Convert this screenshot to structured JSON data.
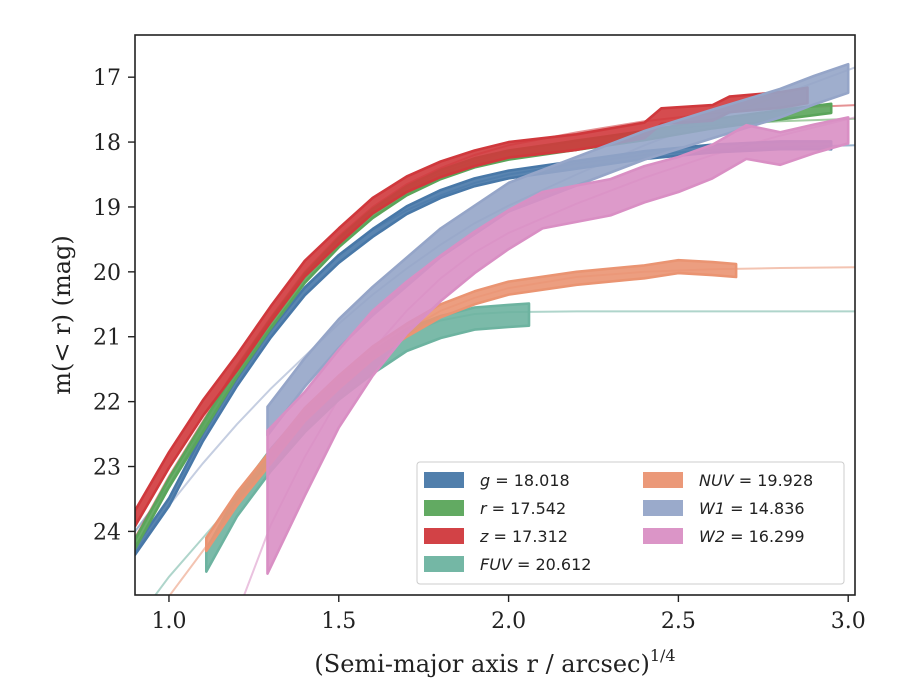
{
  "chart_data": {
    "type": "line",
    "xlabel": "(Semi-major axis r / arcsec)",
    "xlabel_sup": "1/4",
    "ylabel": "m(< r) (mag)",
    "xlim": [
      0.9,
      3.02
    ],
    "ylim": [
      24.98,
      16.35
    ],
    "y_inverted": true,
    "grid": false,
    "legend_position": "lower-right",
    "xticks": [
      1.0,
      1.5,
      2.0,
      2.5,
      3.0
    ],
    "xtick_labels": [
      "1.0",
      "1.5",
      "2.0",
      "2.5",
      "3.0"
    ],
    "yticks": [
      17,
      18,
      19,
      20,
      21,
      22,
      23,
      24
    ],
    "ytick_labels": [
      "17",
      "18",
      "19",
      "20",
      "21",
      "22",
      "23",
      "24"
    ],
    "series": [
      {
        "name": "g = 18.018",
        "var": "g",
        "value": "18.018",
        "color": "#4878a8",
        "x": [
          0.9,
          1.0,
          1.1,
          1.2,
          1.3,
          1.4,
          1.5,
          1.6,
          1.7,
          1.8,
          1.9,
          2.0,
          2.2,
          2.4,
          2.6,
          2.8,
          2.95
        ],
        "y": [
          24.3,
          23.55,
          22.55,
          21.7,
          20.95,
          20.3,
          19.8,
          19.4,
          19.05,
          18.8,
          18.62,
          18.5,
          18.35,
          18.2,
          18.1,
          18.05,
          18.05
        ],
        "band": 0.06,
        "model_x": [
          0.9,
          1.0,
          1.1,
          1.2,
          1.3,
          1.4,
          1.5,
          1.6,
          1.7,
          1.8,
          1.9,
          2.0,
          2.2,
          2.4,
          2.6,
          2.8,
          3.02
        ],
        "model_y": [
          24.0,
          23.3,
          22.4,
          21.55,
          20.85,
          20.25,
          19.75,
          19.35,
          19.05,
          18.82,
          18.63,
          18.5,
          18.33,
          18.2,
          18.12,
          18.08,
          18.05
        ]
      },
      {
        "name": "r = 17.542",
        "var": "r",
        "value": "17.542",
        "color": "#5aa55a",
        "x": [
          0.9,
          1.0,
          1.1,
          1.2,
          1.3,
          1.4,
          1.5,
          1.6,
          1.7,
          1.8,
          1.9,
          2.0,
          2.2,
          2.4,
          2.6,
          2.8,
          2.95
        ],
        "y": [
          24.2,
          23.25,
          22.4,
          21.55,
          20.8,
          20.1,
          19.55,
          19.1,
          18.75,
          18.5,
          18.32,
          18.2,
          18.05,
          17.9,
          17.72,
          17.58,
          17.48
        ],
        "band": 0.07,
        "model_x": [
          0.9,
          1.0,
          1.1,
          1.2,
          1.3,
          1.4,
          1.5,
          1.6,
          1.7,
          1.8,
          1.9,
          2.0,
          2.2,
          2.4,
          2.6,
          2.8,
          3.02
        ],
        "model_y": [
          24.1,
          23.2,
          22.35,
          21.5,
          20.75,
          20.05,
          19.5,
          19.05,
          18.72,
          18.48,
          18.3,
          18.15,
          17.97,
          17.83,
          17.74,
          17.68,
          17.64
        ]
      },
      {
        "name": "z = 17.312",
        "var": "z",
        "value": "17.312",
        "color": "#d0383c",
        "x": [
          0.9,
          1.0,
          1.1,
          1.2,
          1.3,
          1.4,
          1.5,
          1.6,
          1.7,
          1.8,
          1.9,
          2.0,
          2.2,
          2.4,
          2.45,
          2.6,
          2.65,
          2.8,
          2.88
        ],
        "y": [
          23.8,
          22.9,
          22.1,
          21.4,
          20.65,
          19.95,
          19.45,
          18.98,
          18.65,
          18.42,
          18.25,
          18.12,
          18.0,
          17.82,
          17.6,
          17.55,
          17.42,
          17.35,
          17.28
        ],
        "band": 0.12,
        "model_x": [
          0.9,
          1.0,
          1.1,
          1.2,
          1.3,
          1.4,
          1.5,
          1.6,
          1.7,
          1.8,
          1.9,
          2.0,
          2.2,
          2.4,
          2.6,
          2.8,
          3.02
        ],
        "model_y": [
          24.1,
          23.15,
          22.3,
          21.45,
          20.7,
          20.0,
          19.45,
          19.0,
          18.65,
          18.4,
          18.2,
          18.05,
          17.85,
          17.68,
          17.56,
          17.48,
          17.43
        ]
      },
      {
        "name": "FUV = 20.612",
        "var": "FUV",
        "value": "20.612",
        "color": "#6db3a0",
        "x": [
          1.11,
          1.2,
          1.3,
          1.4,
          1.5,
          1.6,
          1.7,
          1.8,
          1.9,
          2.0,
          2.06
        ],
        "y": [
          24.45,
          23.6,
          22.9,
          22.3,
          21.8,
          21.4,
          21.05,
          20.85,
          20.72,
          20.68,
          20.66
        ],
        "band": 0.17,
        "model_x": [
          0.9,
          1.0,
          1.1,
          1.2,
          1.3,
          1.4,
          1.5,
          1.6,
          1.7,
          1.8,
          1.9,
          2.0,
          2.2,
          2.4,
          2.6,
          2.8,
          3.02
        ],
        "model_y": [
          25.4,
          24.7,
          24.1,
          23.5,
          22.9,
          22.3,
          21.75,
          21.3,
          20.95,
          20.75,
          20.65,
          20.62,
          20.61,
          20.61,
          20.61,
          20.61,
          20.61
        ]
      },
      {
        "name": "NUV = 19.928",
        "var": "NUV",
        "value": "19.928",
        "color": "#ea9472",
        "x": [
          1.11,
          1.2,
          1.3,
          1.4,
          1.5,
          1.6,
          1.7,
          1.8,
          1.9,
          2.0,
          2.2,
          2.4,
          2.5,
          2.6,
          2.67
        ],
        "y": [
          24.2,
          23.5,
          22.85,
          22.2,
          21.7,
          21.25,
          20.9,
          20.6,
          20.4,
          20.25,
          20.1,
          20.0,
          19.92,
          19.95,
          19.98
        ],
        "band": 0.1,
        "model_x": [
          0.9,
          1.0,
          1.1,
          1.2,
          1.3,
          1.4,
          1.5,
          1.6,
          1.7,
          1.8,
          1.9,
          2.0,
          2.2,
          2.4,
          2.6,
          2.8,
          3.02
        ],
        "model_y": [
          25.6,
          25.0,
          24.3,
          23.6,
          22.95,
          22.3,
          21.75,
          21.3,
          20.9,
          20.6,
          20.4,
          20.25,
          20.08,
          20.0,
          19.96,
          19.94,
          19.93
        ]
      },
      {
        "name": "W1 = 14.836",
        "var": "W1",
        "value": "14.836",
        "color": "#95a5c8",
        "x": [
          1.29,
          1.4,
          1.5,
          1.6,
          1.7,
          1.8,
          1.9,
          2.0,
          2.2,
          2.4,
          2.6,
          2.8,
          2.9,
          3.0
        ],
        "y": [
          22.3,
          21.55,
          20.95,
          20.45,
          20.0,
          19.55,
          19.2,
          18.85,
          18.45,
          18.05,
          17.72,
          17.4,
          17.2,
          17.02
        ],
        "band": 0.22,
        "model_x": [
          0.9,
          1.0,
          1.1,
          1.2,
          1.3,
          1.4,
          1.5,
          1.6,
          1.7,
          1.8,
          1.9,
          2.0,
          2.2,
          2.4,
          2.6,
          2.8,
          3.02
        ],
        "model_y": [
          24.3,
          23.6,
          22.95,
          22.35,
          21.8,
          21.3,
          20.8,
          20.35,
          19.95,
          19.58,
          19.25,
          18.98,
          18.5,
          18.05,
          17.65,
          17.28,
          16.85
        ]
      },
      {
        "name": "W2 = 16.299",
        "var": "W2",
        "value": "16.299",
        "color": "#d98fc4",
        "x": [
          1.29,
          1.4,
          1.5,
          1.6,
          1.7,
          1.8,
          1.9,
          2.0,
          2.1,
          2.2,
          2.3,
          2.4,
          2.5,
          2.6,
          2.7,
          2.8,
          2.9,
          3.0
        ],
        "y": [
          23.55,
          22.65,
          21.8,
          21.1,
          20.55,
          20.1,
          19.7,
          19.35,
          19.05,
          18.95,
          18.85,
          18.65,
          18.5,
          18.3,
          18.0,
          18.1,
          17.95,
          17.82
        ],
        "band": [
          1.1,
          0.8,
          0.6,
          0.5,
          0.4,
          0.35,
          0.32,
          0.3,
          0.28,
          0.28,
          0.28,
          0.28,
          0.27,
          0.26,
          0.26,
          0.25,
          0.22,
          0.2
        ],
        "model_x": [
          1.22,
          1.3,
          1.4,
          1.5,
          1.6,
          1.7,
          1.8,
          1.9,
          2.0,
          2.2,
          2.4,
          2.6,
          2.8,
          3.02
        ],
        "model_y": [
          25.0,
          23.9,
          22.85,
          21.95,
          21.2,
          20.6,
          20.1,
          19.7,
          19.4,
          18.95,
          18.55,
          18.2,
          17.9,
          17.62
        ]
      }
    ]
  }
}
